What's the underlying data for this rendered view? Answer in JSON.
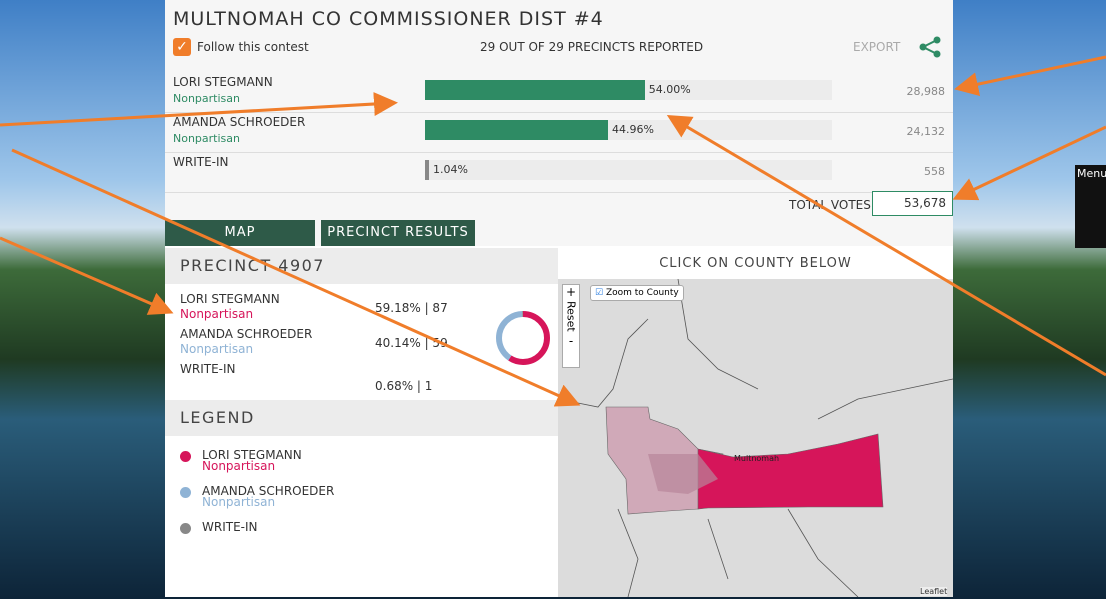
{
  "header": {
    "title": "MULTNOMAH CO COMMISSIONER DIST #4",
    "follow": "Follow this contest",
    "precincts": "29 OUT OF 29 PRECINCTS REPORTED",
    "export": "EXPORT"
  },
  "candidates": [
    {
      "name": "LORI STEGMANN",
      "party": "Nonpartisan",
      "percent": 54.0,
      "percent_label": "54.00%",
      "votes": "28,988",
      "color": "#2e8b64"
    },
    {
      "name": "AMANDA SCHROEDER",
      "party": "Nonpartisan",
      "percent": 44.96,
      "percent_label": "44.96%",
      "votes": "24,132",
      "color": "#2e8b64"
    },
    {
      "name": "WRITE-IN",
      "percent": 1.04,
      "percent_label": "1.04%",
      "votes": "558",
      "color": "#888888"
    }
  ],
  "total": {
    "label": "TOTAL VOTES",
    "value": "53,678"
  },
  "tabs": [
    "MAP",
    "PRECINCT RESULTS"
  ],
  "precinct": {
    "title": "PRECINCT 4907",
    "rows": [
      {
        "name": "LORI STEGMANN",
        "party": "Nonpartisan",
        "percent": 59.18,
        "result": "59.18% | 87",
        "color": "#d6155a"
      },
      {
        "name": "AMANDA SCHROEDER",
        "party": "Nonpartisan",
        "percent": 40.14,
        "result": "40.14% | 59",
        "color": "#8fb3d5"
      },
      {
        "name": "WRITE-IN",
        "percent": 0.68,
        "result": "0.68% | 1",
        "color": "#888888"
      }
    ]
  },
  "legend": {
    "title": "LEGEND",
    "items": [
      {
        "name": "LORI STEGMANN",
        "party": "Nonpartisan",
        "color": "#d6155a"
      },
      {
        "name": "AMANDA SCHROEDER",
        "party": "Nonpartisan",
        "color": "#8fb3d5"
      },
      {
        "name": "WRITE-IN",
        "color": "#888888"
      }
    ]
  },
  "map": {
    "prompt": "CLICK ON COUNTY BELOW",
    "zoom": "Zoom to County",
    "zoom_in": "+",
    "zoom_out": "-",
    "reset": "Reset",
    "county": "Multnomah",
    "attribution": "Leaflet"
  },
  "side": {
    "menu": "Menu"
  }
}
